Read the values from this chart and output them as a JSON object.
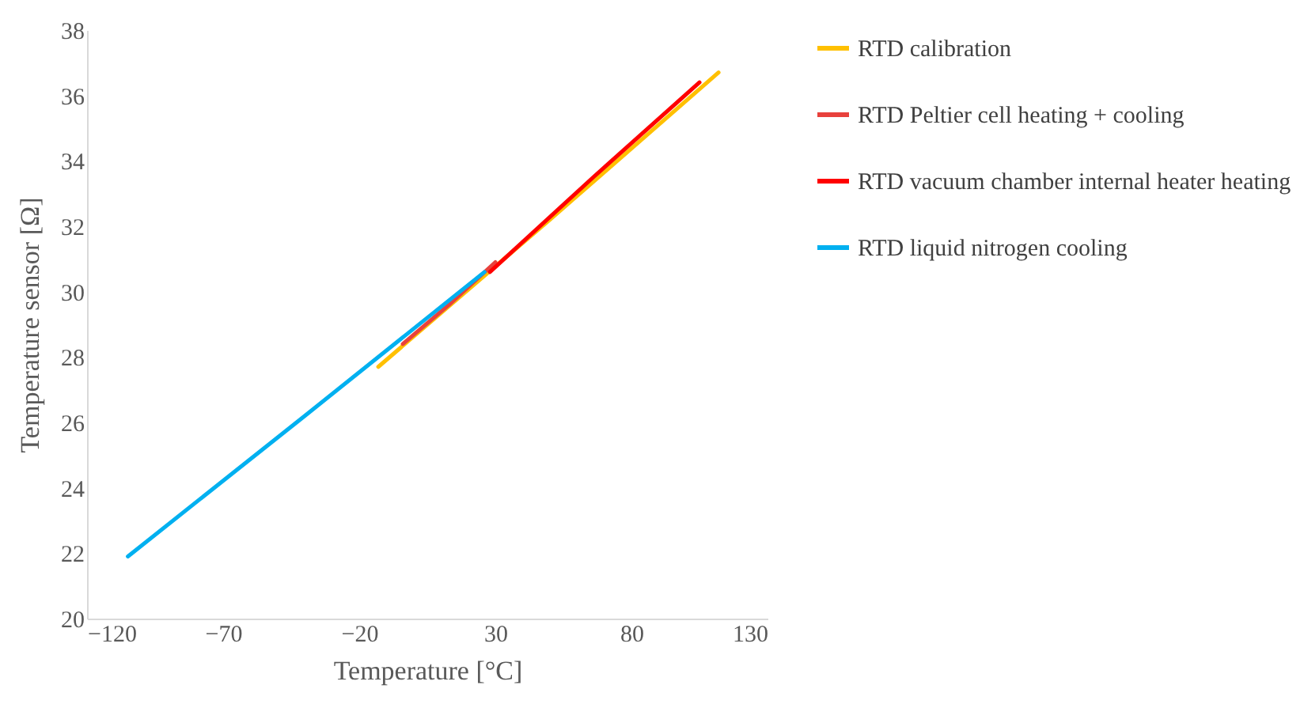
{
  "chart_data": {
    "type": "line",
    "xlabel": "Temperature  [°C]",
    "ylabel": "Temperature sensor  [Ω]",
    "xlim": [
      -120,
      130
    ],
    "ylim": [
      20,
      38
    ],
    "xticks": [
      {
        "value": -120,
        "label": "−120"
      },
      {
        "value": -70,
        "label": "−70"
      },
      {
        "value": -20,
        "label": "−20"
      },
      30,
      80,
      130
    ],
    "yticks": [
      20,
      22,
      24,
      26,
      28,
      30,
      32,
      34,
      36,
      38
    ],
    "grid": false,
    "legend": "right",
    "marker": "none",
    "line_style": "solid",
    "series": [
      {
        "name": "RTD calibration",
        "color": "#ffc000",
        "x": [
          -13,
          50,
          112
        ],
        "values": [
          27.7,
          32.2,
          36.7
        ]
      },
      {
        "name": "RTD Peltier cell heating + cooling",
        "color": "#e8413c",
        "x": [
          -4,
          13,
          30
        ],
        "values": [
          28.4,
          29.6,
          30.9
        ]
      },
      {
        "name": "RTD vacuum chamber internal heater heating",
        "color": "#ff0000",
        "x": [
          28,
          66,
          105
        ],
        "values": [
          30.6,
          33.5,
          36.4
        ]
      },
      {
        "name": "RTD liquid nitrogen cooling",
        "color": "#00b0f0",
        "x": [
          -105,
          -40,
          26
        ],
        "values": [
          21.9,
          26.2,
          30.6
        ]
      }
    ]
  }
}
